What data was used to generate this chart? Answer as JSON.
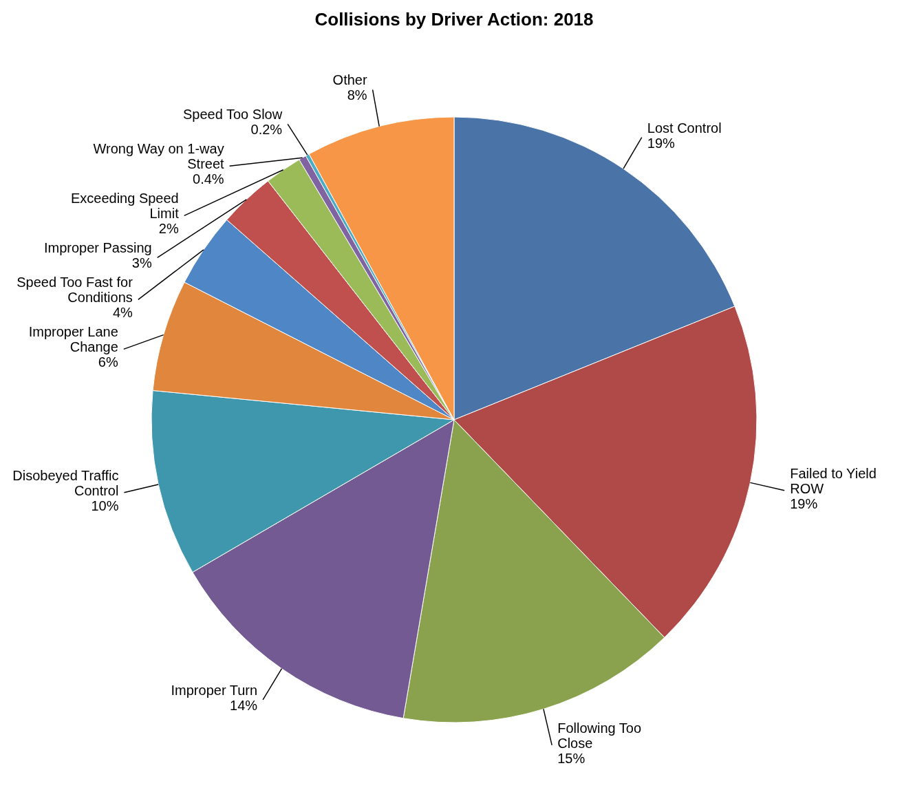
{
  "chart_data": {
    "type": "pie",
    "title": "Collisions by Driver Action: 2018",
    "categories": [
      "Lost Control",
      "Failed to Yield ROW",
      "Following Too Close",
      "Improper Turn",
      "Disobeyed Traffic Control",
      "Improper Lane Change",
      "Speed Too Fast for Conditions",
      "Improper Passing",
      "Exceeding Speed Limit",
      "Wrong Way on 1-way Street",
      "Speed Too Slow",
      "Other"
    ],
    "values": [
      19,
      19,
      15,
      14,
      10,
      6,
      4,
      3,
      2,
      0.4,
      0.2,
      8
    ],
    "value_labels": [
      "19%",
      "19%",
      "15%",
      "14%",
      "10%",
      "6%",
      "4%",
      "3%",
      "2%",
      "0.4%",
      "0.2%",
      "8%"
    ],
    "colors": [
      "#4a74a8",
      "#b04a48",
      "#8aa24e",
      "#735a93",
      "#3f97ae",
      "#e0873d",
      "#4f86c6",
      "#c0504d",
      "#9bbb59",
      "#8064a2",
      "#4bacc6",
      "#f79646"
    ]
  }
}
